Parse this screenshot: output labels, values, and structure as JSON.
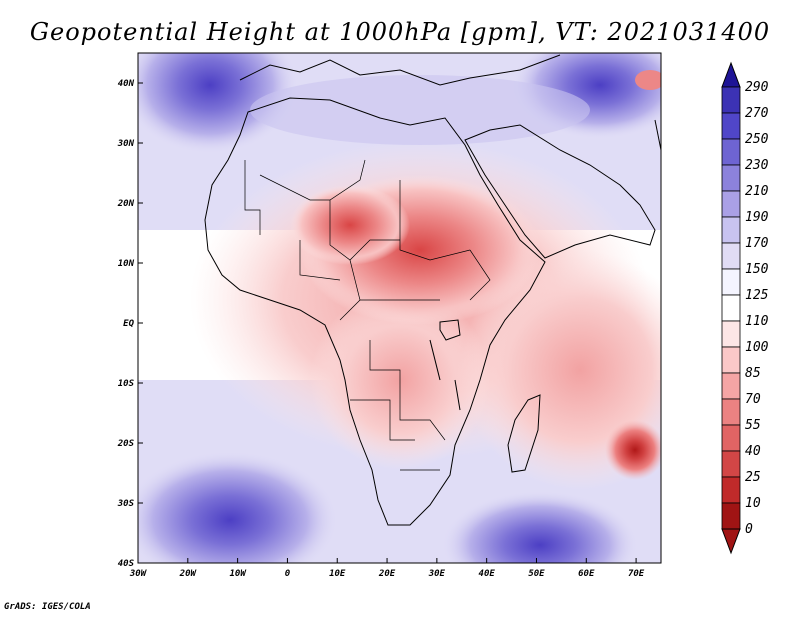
{
  "title": "Geopotential Height at 1000hPa [gpm], VT: 2021031400",
  "credit": "GrADS: IGES/COLA",
  "map": {
    "lon_ticks": [
      "30W",
      "20W",
      "10W",
      "0",
      "10E",
      "20E",
      "30E",
      "40E",
      "50E",
      "60E",
      "70E"
    ],
    "lat_ticks": [
      "40N",
      "30N",
      "20N",
      "10N",
      "EQ",
      "10S",
      "20S",
      "30S",
      "40S"
    ],
    "lon_range": [
      -30,
      75
    ],
    "lat_range": [
      -40,
      45
    ]
  },
  "colorbar": {
    "levels": [
      "290",
      "270",
      "250",
      "230",
      "210",
      "190",
      "170",
      "150",
      "125",
      "110",
      "100",
      "85",
      "70",
      "55",
      "40",
      "25",
      "10",
      "0"
    ],
    "colors": [
      "#1e1496",
      "#3c32b4",
      "#5046c8",
      "#6e64d2",
      "#8c82dc",
      "#aaa0e6",
      "#c8c3f0",
      "#e1dcf5",
      "#f5f5ff",
      "#ffffff",
      "#fde6e6",
      "#fbc8c8",
      "#f5a5a5",
      "#eb8282",
      "#e16464",
      "#d24646",
      "#c02a2a",
      "#a01414"
    ]
  },
  "colors": {
    "land_outline": "#000000",
    "frame": "#000000"
  }
}
